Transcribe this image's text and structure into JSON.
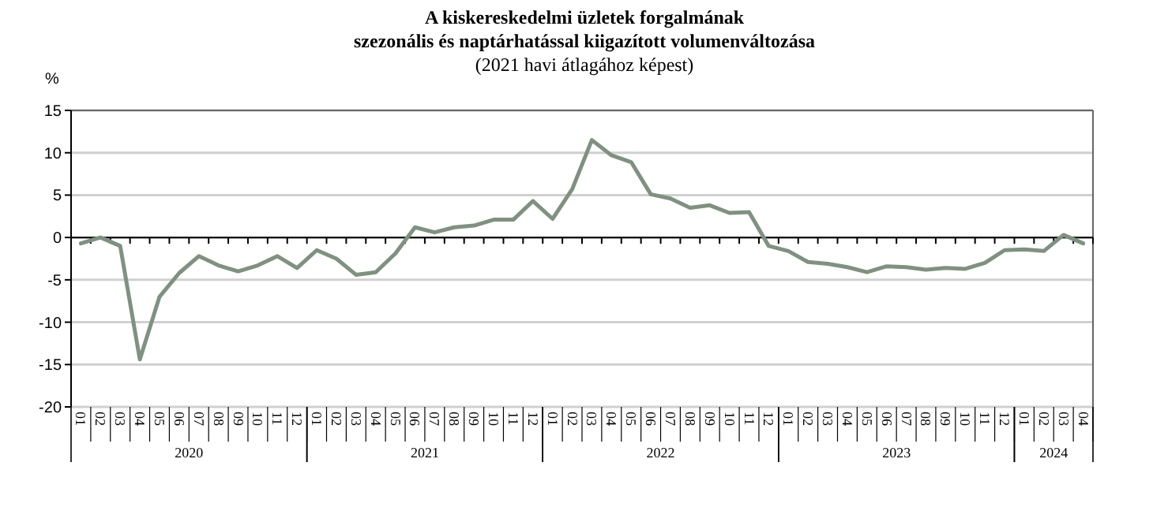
{
  "chart_data": {
    "type": "line",
    "title": "A kiskereskedelmi üzletek forgalmának\nszezonális és naptárhatással kiigazított volumenváltozása",
    "subtitle": "(2021 havi átlagához képest)",
    "ylabel": "%",
    "categories": [
      "01",
      "02",
      "03",
      "04",
      "05",
      "06",
      "07",
      "08",
      "09",
      "10",
      "11",
      "12",
      "01",
      "02",
      "03",
      "04",
      "05",
      "06",
      "07",
      "08",
      "09",
      "10",
      "11",
      "12",
      "01",
      "02",
      "03",
      "04",
      "05",
      "06",
      "07",
      "08",
      "09",
      "10",
      "11",
      "12",
      "01",
      "02",
      "03",
      "04",
      "05",
      "06",
      "07",
      "08",
      "09",
      "10",
      "11",
      "12",
      "01",
      "02",
      "03",
      "04"
    ],
    "annotations": [
      "2020",
      "2021",
      "2022",
      "2023",
      "2024"
    ],
    "series": [
      {
        "color": "#7f9180",
        "values": [
          -0.7,
          0,
          -1.0,
          -14.4,
          -7.0,
          -4.2,
          -2.2,
          -3.3,
          -4.0,
          -3.3,
          -2.2,
          -3.6,
          -1.5,
          -2.5,
          -4.4,
          -4.1,
          -1.9,
          1.2,
          0.6,
          1.2,
          1.4,
          2.1,
          2.1,
          4.3,
          2.2,
          5.7,
          11.5,
          9.7,
          8.9,
          5.1,
          4.6,
          3.5,
          3.8,
          2.9,
          3.0,
          -1.0,
          -1.6,
          -2.9,
          -3.1,
          -3.5,
          -4.1,
          -3.4,
          -3.5,
          -3.8,
          -3.6,
          -3.7,
          -3.0,
          -1.5,
          -1.4,
          -1.6,
          0.3,
          -0.7
        ]
      }
    ],
    "ylim": [
      -20,
      15
    ],
    "yticks": [
      -20,
      -15,
      -10,
      -5,
      0,
      5,
      10,
      15
    ],
    "grid": "y",
    "marker": "none",
    "line_style": "solid"
  }
}
